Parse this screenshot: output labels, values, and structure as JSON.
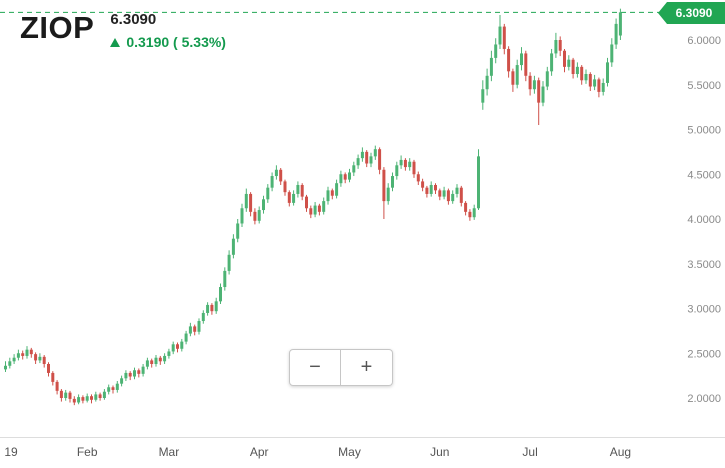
{
  "header": {
    "symbol": "ZIOP",
    "price": "6.3090",
    "change_text": "0.3190 ( 5.33%)"
  },
  "price_tag": {
    "label": "6.3090"
  },
  "zoom_controls": {
    "zoom_out": "−",
    "zoom_in": "+"
  },
  "chart_data": {
    "type": "candlestick",
    "title": "ZIOP stock price",
    "symbol": "ZIOP",
    "last_price": 6.309,
    "change": 0.319,
    "change_percent": 5.33,
    "price_line": 6.309,
    "legend": "none",
    "grid": "off",
    "y_axis": {
      "side": "right",
      "range": [
        1.85,
        6.45
      ],
      "ticks": [
        6.0,
        5.5,
        5.0,
        4.5,
        4.0,
        3.5,
        3.0,
        2.5,
        2.0
      ],
      "tick_labels": [
        "6.0000",
        "5.5000",
        "5.0000",
        "4.5000",
        "4.0000",
        "3.5000",
        "3.0000",
        "2.5000",
        "2.0000"
      ]
    },
    "x_axis": {
      "labels": [
        {
          "text": "19",
          "index": 0
        },
        {
          "text": "Feb",
          "index": 19
        },
        {
          "text": "Mar",
          "index": 38
        },
        {
          "text": "Apr",
          "index": 59
        },
        {
          "text": "May",
          "index": 80
        },
        {
          "text": "Jun",
          "index": 101
        },
        {
          "text": "Jul",
          "index": 122
        },
        {
          "text": "Aug",
          "index": 143
        }
      ]
    },
    "colors": {
      "up": "#4db374",
      "down": "#cf5049",
      "price_line": "#21a653",
      "price_tag": "#21a653"
    },
    "candles": [
      [
        2.32,
        2.41,
        2.29,
        2.36
      ],
      [
        2.36,
        2.45,
        2.33,
        2.41
      ],
      [
        2.41,
        2.49,
        2.38,
        2.45
      ],
      [
        2.45,
        2.54,
        2.42,
        2.5
      ],
      [
        2.5,
        2.53,
        2.43,
        2.47
      ],
      [
        2.47,
        2.58,
        2.44,
        2.54
      ],
      [
        2.54,
        2.56,
        2.45,
        2.49
      ],
      [
        2.49,
        2.51,
        2.38,
        2.42
      ],
      [
        2.42,
        2.5,
        2.39,
        2.46
      ],
      [
        2.46,
        2.48,
        2.34,
        2.38
      ],
      [
        2.38,
        2.4,
        2.24,
        2.28
      ],
      [
        2.28,
        2.3,
        2.14,
        2.18
      ],
      [
        2.18,
        2.2,
        2.04,
        2.08
      ],
      [
        2.08,
        2.1,
        1.96,
        2.0
      ],
      [
        2.0,
        2.09,
        1.97,
        2.06
      ],
      [
        2.06,
        2.08,
        1.95,
        1.99
      ],
      [
        1.99,
        2.02,
        1.92,
        1.95
      ],
      [
        1.95,
        2.04,
        1.93,
        2.01
      ],
      [
        2.01,
        2.03,
        1.94,
        1.97
      ],
      [
        1.97,
        2.05,
        1.95,
        2.02
      ],
      [
        2.02,
        2.04,
        1.94,
        1.98
      ],
      [
        1.98,
        2.07,
        1.96,
        2.04
      ],
      [
        2.04,
        2.06,
        1.97,
        2.0
      ],
      [
        2.0,
        2.1,
        1.98,
        2.07
      ],
      [
        2.07,
        2.15,
        2.04,
        2.12
      ],
      [
        2.12,
        2.14,
        2.05,
        2.09
      ],
      [
        2.09,
        2.19,
        2.06,
        2.16
      ],
      [
        2.16,
        2.25,
        2.13,
        2.22
      ],
      [
        2.22,
        2.31,
        2.19,
        2.28
      ],
      [
        2.28,
        2.3,
        2.2,
        2.24
      ],
      [
        2.24,
        2.34,
        2.21,
        2.31
      ],
      [
        2.31,
        2.33,
        2.23,
        2.27
      ],
      [
        2.27,
        2.38,
        2.24,
        2.35
      ],
      [
        2.35,
        2.45,
        2.32,
        2.42
      ],
      [
        2.42,
        2.44,
        2.34,
        2.38
      ],
      [
        2.38,
        2.48,
        2.35,
        2.45
      ],
      [
        2.45,
        2.47,
        2.37,
        2.41
      ],
      [
        2.41,
        2.5,
        2.38,
        2.47
      ],
      [
        2.47,
        2.55,
        2.44,
        2.52
      ],
      [
        2.52,
        2.63,
        2.49,
        2.6
      ],
      [
        2.6,
        2.62,
        2.51,
        2.55
      ],
      [
        2.55,
        2.66,
        2.52,
        2.63
      ],
      [
        2.63,
        2.75,
        2.6,
        2.72
      ],
      [
        2.72,
        2.84,
        2.69,
        2.8
      ],
      [
        2.8,
        2.82,
        2.7,
        2.74
      ],
      [
        2.74,
        2.89,
        2.71,
        2.86
      ],
      [
        2.86,
        2.98,
        2.83,
        2.95
      ],
      [
        2.95,
        3.07,
        2.92,
        3.04
      ],
      [
        3.04,
        3.06,
        2.93,
        2.97
      ],
      [
        2.97,
        3.12,
        2.94,
        3.08
      ],
      [
        3.08,
        3.28,
        3.05,
        3.24
      ],
      [
        3.24,
        3.46,
        3.2,
        3.42
      ],
      [
        3.42,
        3.65,
        3.38,
        3.6
      ],
      [
        3.6,
        3.83,
        3.56,
        3.78
      ],
      [
        3.78,
        4.0,
        3.74,
        3.95
      ],
      [
        3.95,
        4.17,
        3.91,
        4.12
      ],
      [
        4.12,
        4.34,
        4.08,
        4.28
      ],
      [
        4.28,
        4.3,
        4.03,
        4.08
      ],
      [
        4.08,
        4.12,
        3.94,
        3.98
      ],
      [
        3.98,
        4.14,
        3.95,
        4.1
      ],
      [
        4.1,
        4.26,
        4.06,
        4.22
      ],
      [
        4.22,
        4.39,
        4.18,
        4.35
      ],
      [
        4.35,
        4.52,
        4.31,
        4.48
      ],
      [
        4.48,
        4.6,
        4.44,
        4.55
      ],
      [
        4.55,
        4.57,
        4.38,
        4.42
      ],
      [
        4.42,
        4.44,
        4.26,
        4.3
      ],
      [
        4.3,
        4.32,
        4.14,
        4.18
      ],
      [
        4.18,
        4.32,
        4.15,
        4.28
      ],
      [
        4.28,
        4.42,
        4.24,
        4.38
      ],
      [
        4.38,
        4.4,
        4.21,
        4.25
      ],
      [
        4.25,
        4.27,
        4.08,
        4.12
      ],
      [
        4.12,
        4.15,
        4.01,
        4.05
      ],
      [
        4.05,
        4.19,
        4.02,
        4.15
      ],
      [
        4.15,
        4.17,
        4.04,
        4.08
      ],
      [
        4.08,
        4.24,
        4.05,
        4.2
      ],
      [
        4.2,
        4.36,
        4.16,
        4.32
      ],
      [
        4.32,
        4.34,
        4.22,
        4.26
      ],
      [
        4.26,
        4.44,
        4.23,
        4.4
      ],
      [
        4.4,
        4.54,
        4.36,
        4.5
      ],
      [
        4.5,
        4.52,
        4.4,
        4.44
      ],
      [
        4.44,
        4.56,
        4.41,
        4.52
      ],
      [
        4.52,
        4.64,
        4.48,
        4.6
      ],
      [
        4.6,
        4.72,
        4.56,
        4.68
      ],
      [
        4.68,
        4.8,
        4.64,
        4.75
      ],
      [
        4.75,
        4.77,
        4.58,
        4.62
      ],
      [
        4.62,
        4.74,
        4.58,
        4.7
      ],
      [
        4.7,
        4.82,
        4.66,
        4.78
      ],
      [
        4.78,
        4.8,
        4.5,
        4.55
      ],
      [
        4.55,
        4.58,
        4.0,
        4.2
      ],
      [
        4.2,
        4.4,
        4.16,
        4.35
      ],
      [
        4.35,
        4.52,
        4.31,
        4.48
      ],
      [
        4.48,
        4.64,
        4.44,
        4.6
      ],
      [
        4.6,
        4.71,
        4.56,
        4.66
      ],
      [
        4.66,
        4.68,
        4.54,
        4.58
      ],
      [
        4.58,
        4.68,
        4.54,
        4.64
      ],
      [
        4.64,
        4.66,
        4.46,
        4.5
      ],
      [
        4.5,
        4.53,
        4.38,
        4.42
      ],
      [
        4.42,
        4.45,
        4.31,
        4.35
      ],
      [
        4.35,
        4.37,
        4.24,
        4.28
      ],
      [
        4.28,
        4.42,
        4.25,
        4.38
      ],
      [
        4.38,
        4.4,
        4.28,
        4.32
      ],
      [
        4.32,
        4.34,
        4.21,
        4.25
      ],
      [
        4.25,
        4.36,
        4.22,
        4.32
      ],
      [
        4.32,
        4.34,
        4.16,
        4.2
      ],
      [
        4.2,
        4.32,
        4.17,
        4.28
      ],
      [
        4.28,
        4.39,
        4.24,
        4.35
      ],
      [
        4.35,
        4.37,
        4.14,
        4.18
      ],
      [
        4.18,
        4.2,
        4.04,
        4.08
      ],
      [
        4.08,
        4.11,
        3.98,
        4.02
      ],
      [
        4.02,
        4.16,
        3.99,
        4.12
      ],
      [
        4.12,
        4.78,
        4.1,
        4.7
      ],
      [
        5.3,
        5.55,
        5.22,
        5.45
      ],
      [
        5.45,
        5.68,
        5.38,
        5.6
      ],
      [
        5.6,
        5.88,
        5.54,
        5.8
      ],
      [
        5.8,
        6.02,
        5.74,
        5.95
      ],
      [
        5.95,
        6.28,
        5.9,
        6.15
      ],
      [
        6.15,
        6.18,
        5.84,
        5.9
      ],
      [
        5.9,
        5.93,
        5.58,
        5.65
      ],
      [
        5.65,
        5.68,
        5.42,
        5.5
      ],
      [
        5.5,
        5.78,
        5.46,
        5.72
      ],
      [
        5.72,
        5.92,
        5.66,
        5.85
      ],
      [
        5.85,
        5.88,
        5.54,
        5.6
      ],
      [
        5.6,
        5.64,
        5.38,
        5.45
      ],
      [
        5.45,
        5.6,
        5.4,
        5.55
      ],
      [
        5.55,
        5.58,
        5.05,
        5.3
      ],
      [
        5.3,
        5.54,
        5.26,
        5.48
      ],
      [
        5.48,
        5.7,
        5.44,
        5.65
      ],
      [
        5.65,
        5.9,
        5.6,
        5.85
      ],
      [
        5.85,
        6.08,
        5.8,
        6.0
      ],
      [
        6.0,
        6.04,
        5.82,
        5.88
      ],
      [
        5.88,
        5.9,
        5.64,
        5.7
      ],
      [
        5.7,
        5.83,
        5.66,
        5.78
      ],
      [
        5.78,
        5.8,
        5.57,
        5.62
      ],
      [
        5.62,
        5.75,
        5.58,
        5.7
      ],
      [
        5.7,
        5.72,
        5.5,
        5.55
      ],
      [
        5.55,
        5.67,
        5.51,
        5.62
      ],
      [
        5.62,
        5.64,
        5.43,
        5.48
      ],
      [
        5.48,
        5.61,
        5.44,
        5.56
      ],
      [
        5.56,
        5.58,
        5.36,
        5.42
      ],
      [
        5.42,
        5.57,
        5.38,
        5.52
      ],
      [
        5.52,
        5.8,
        5.48,
        5.75
      ],
      [
        5.75,
        6.02,
        5.7,
        5.95
      ],
      [
        5.95,
        6.24,
        5.9,
        6.18
      ],
      [
        6.05,
        6.35,
        6.0,
        6.309
      ]
    ]
  }
}
